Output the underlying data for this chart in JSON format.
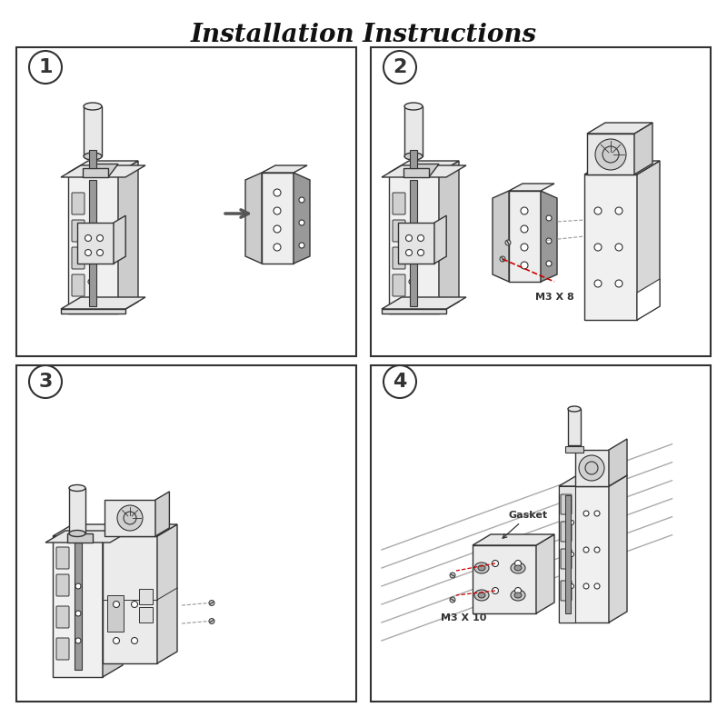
{
  "title": "Installation Instructions",
  "title_fontsize": 20,
  "title_fontstyle": "italic",
  "title_fontweight": "bold",
  "background_color": "#ffffff",
  "panel_bg": "#ffffff",
  "panel_border_color": "#222222",
  "panel_border_lw": 1.5,
  "step_label_fontsize": 16,
  "annotation_color_red": "#cc0000",
  "annotation_color_gray": "#666666",
  "annotation_color_black": "#111111",
  "screw_label_1": "M3 X 8",
  "screw_label_2": "M3 X 10",
  "gasket_label": "Gasket",
  "light_gray": "#e8e8e8",
  "mid_gray": "#cccccc",
  "dark_gray": "#999999",
  "line_color": "#333333"
}
